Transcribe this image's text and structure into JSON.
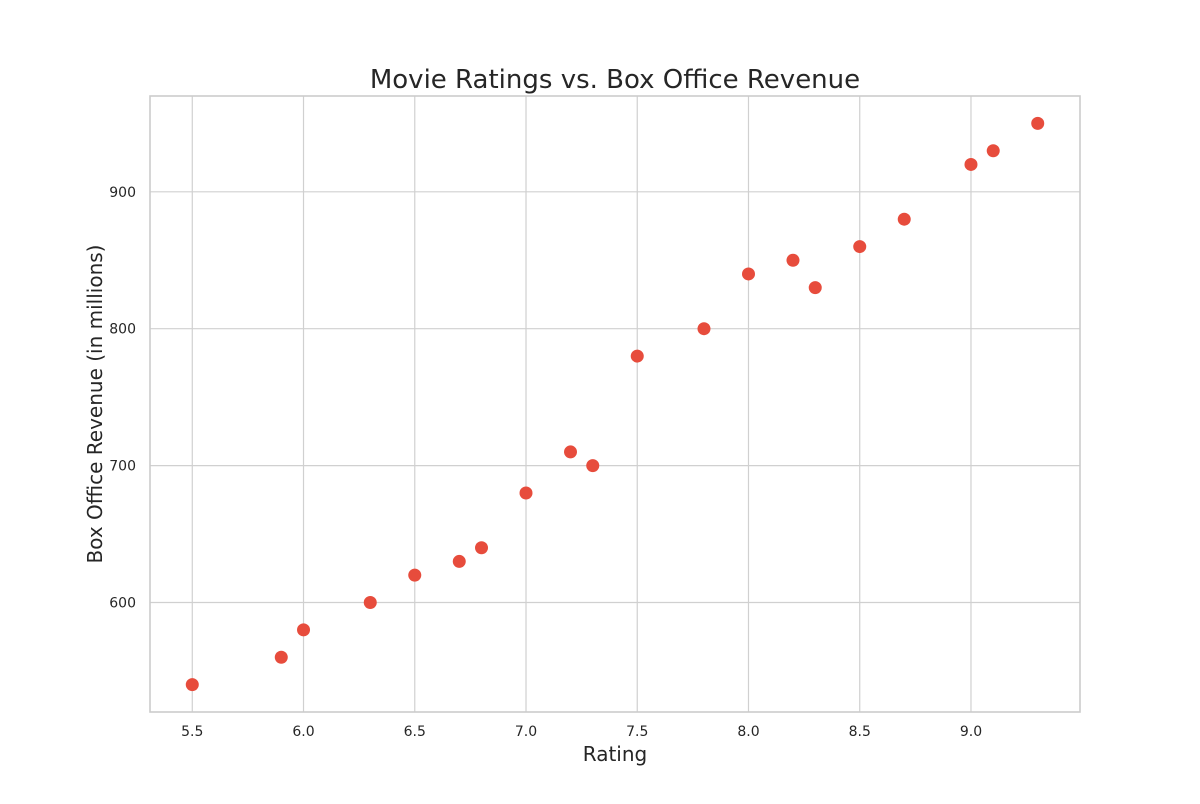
{
  "chart_data": {
    "type": "scatter",
    "title": "Movie Ratings vs. Box Office Revenue",
    "xlabel": "Rating",
    "ylabel": "Box Office Revenue (in millions)",
    "xlim": [
      5.31,
      9.49
    ],
    "ylim": [
      520,
      970
    ],
    "grid": true,
    "point_color": "#e74c3c",
    "x_ticks": [
      {
        "value": 5.5,
        "label": "5.5"
      },
      {
        "value": 6.0,
        "label": "6.0"
      },
      {
        "value": 6.5,
        "label": "6.5"
      },
      {
        "value": 7.0,
        "label": "7.0"
      },
      {
        "value": 7.5,
        "label": "7.5"
      },
      {
        "value": 8.0,
        "label": "8.0"
      },
      {
        "value": 8.5,
        "label": "8.5"
      },
      {
        "value": 9.0,
        "label": "9.0"
      }
    ],
    "y_ticks": [
      {
        "value": 600,
        "label": "600"
      },
      {
        "value": 700,
        "label": "700"
      },
      {
        "value": 800,
        "label": "800"
      },
      {
        "value": 900,
        "label": "900"
      }
    ],
    "points": [
      {
        "x": 5.5,
        "y": 540
      },
      {
        "x": 5.9,
        "y": 560
      },
      {
        "x": 6.0,
        "y": 580
      },
      {
        "x": 6.3,
        "y": 600
      },
      {
        "x": 6.5,
        "y": 620
      },
      {
        "x": 6.7,
        "y": 630
      },
      {
        "x": 6.8,
        "y": 640
      },
      {
        "x": 7.0,
        "y": 680
      },
      {
        "x": 7.2,
        "y": 710
      },
      {
        "x": 7.3,
        "y": 700
      },
      {
        "x": 7.5,
        "y": 780
      },
      {
        "x": 7.8,
        "y": 800
      },
      {
        "x": 8.0,
        "y": 840
      },
      {
        "x": 8.2,
        "y": 850
      },
      {
        "x": 8.3,
        "y": 830
      },
      {
        "x": 8.5,
        "y": 860
      },
      {
        "x": 8.7,
        "y": 880
      },
      {
        "x": 9.0,
        "y": 920
      },
      {
        "x": 9.1,
        "y": 930
      },
      {
        "x": 9.3,
        "y": 950
      }
    ]
  }
}
